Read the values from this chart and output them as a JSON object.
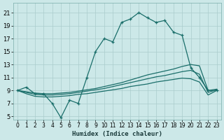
{
  "xlabel": "Humidex (Indice chaleur)",
  "bg_color": "#cce8e8",
  "grid_color": "#aacccc",
  "line_color": "#1a6e6a",
  "xlim": [
    -0.5,
    23.5
  ],
  "ylim": [
    4.5,
    22.5
  ],
  "xticks": [
    0,
    1,
    2,
    3,
    4,
    5,
    6,
    7,
    8,
    9,
    10,
    11,
    12,
    13,
    14,
    15,
    16,
    17,
    18,
    19,
    20,
    21,
    22,
    23
  ],
  "yticks": [
    5,
    7,
    9,
    11,
    13,
    15,
    17,
    19,
    21
  ],
  "series1": [
    9.0,
    9.5,
    8.5,
    8.5,
    7.0,
    4.8,
    7.5,
    7.0,
    11.0,
    15.0,
    17.0,
    16.5,
    19.5,
    20.0,
    21.0,
    20.2,
    19.5,
    19.8,
    18.0,
    17.5,
    12.5,
    11.0,
    9.0,
    9.0
  ],
  "series2": [
    9.0,
    8.8,
    8.6,
    8.5,
    8.5,
    8.6,
    8.7,
    8.9,
    9.1,
    9.3,
    9.6,
    9.9,
    10.2,
    10.6,
    11.0,
    11.4,
    11.7,
    12.0,
    12.3,
    12.7,
    13.0,
    12.8,
    9.0,
    9.2
  ],
  "series3": [
    9.0,
    8.7,
    8.4,
    8.3,
    8.3,
    8.4,
    8.5,
    8.7,
    8.9,
    9.1,
    9.3,
    9.6,
    9.9,
    10.2,
    10.5,
    10.8,
    11.1,
    11.3,
    11.6,
    11.9,
    12.1,
    11.5,
    8.7,
    9.1
  ],
  "series4": [
    9.0,
    8.5,
    8.1,
    8.0,
    8.0,
    8.1,
    8.2,
    8.4,
    8.5,
    8.7,
    8.9,
    9.1,
    9.3,
    9.6,
    9.8,
    10.0,
    10.3,
    10.5,
    10.7,
    10.9,
    10.8,
    10.3,
    8.3,
    9.0
  ]
}
